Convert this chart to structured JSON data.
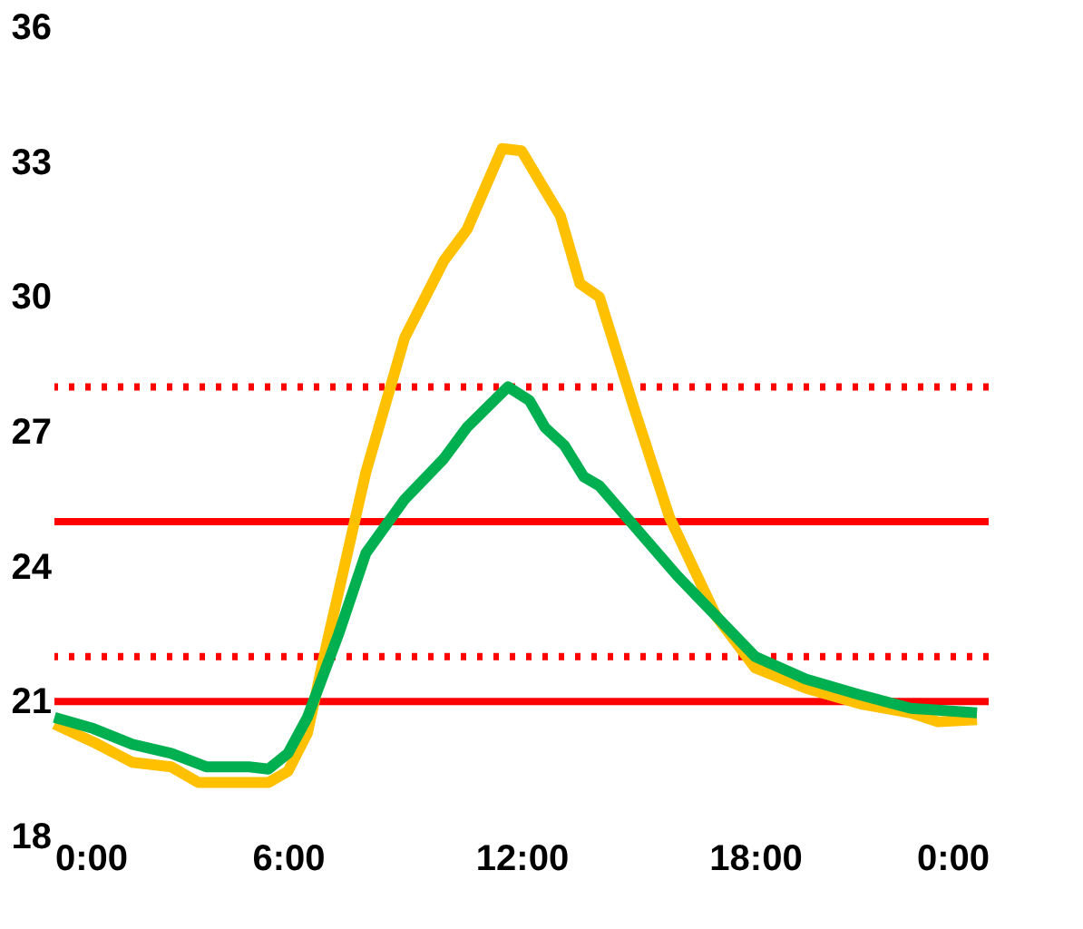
{
  "chart_data": {
    "type": "line",
    "xlim": [
      0,
      24
    ],
    "xticks": [
      {
        "value": 0,
        "label": "0:00"
      },
      {
        "value": 6,
        "label": "6:00"
      },
      {
        "value": 12,
        "label": "12:00"
      },
      {
        "value": 18,
        "label": "18:00"
      },
      {
        "value": 24,
        "label": "0:00"
      }
    ],
    "ylim": [
      18,
      36
    ],
    "yticks": [
      18,
      21,
      24,
      27,
      30,
      33,
      36
    ],
    "grid": false,
    "marker": "none",
    "line_style": "solid",
    "series": [
      {
        "color": "#ffc000",
        "x": [
          0,
          1,
          2,
          3,
          3.7,
          5.5,
          6,
          6.5,
          7,
          8,
          9,
          10,
          10.6,
          11.5,
          12,
          13,
          13.5,
          14,
          14.9,
          15.8,
          17,
          18,
          19.3,
          20.7,
          22,
          22.7,
          23.7
        ],
        "values": [
          20.5,
          20.1,
          19.65,
          19.55,
          19.2,
          19.2,
          19.45,
          20.3,
          22.3,
          26.1,
          29.1,
          30.8,
          31.5,
          33.3,
          33.25,
          31.8,
          30.3,
          30.0,
          27.5,
          25.1,
          22.9,
          21.75,
          21.3,
          20.95,
          20.75,
          20.55,
          20.6
        ]
      },
      {
        "color": "#00b050",
        "x": [
          0,
          1,
          2,
          3,
          3.9,
          5,
          5.5,
          6,
          6.5,
          7.3,
          8,
          9,
          10,
          10.6,
          11.3,
          11.65,
          12.2,
          12.6,
          13.1,
          13.6,
          14,
          14.9,
          16,
          17,
          18,
          19.3,
          20.7,
          22,
          23.7
        ],
        "values": [
          20.65,
          20.4,
          20.05,
          19.85,
          19.55,
          19.55,
          19.5,
          19.85,
          20.65,
          22.5,
          24.3,
          25.5,
          26.4,
          27.1,
          27.7,
          28.0,
          27.7,
          27.1,
          26.7,
          26.0,
          25.8,
          24.9,
          23.8,
          22.9,
          22.0,
          21.5,
          21.15,
          20.85,
          20.75
        ]
      }
    ],
    "ref_lines": [
      {
        "axis": "y",
        "value": 25,
        "color": "#ff0000",
        "line_style": "solid"
      },
      {
        "axis": "y",
        "value": 21,
        "color": "#ff0000",
        "line_style": "solid"
      },
      {
        "axis": "y",
        "value": 28,
        "color": "#ff0000",
        "line_style": "dotted"
      },
      {
        "axis": "y",
        "value": 22,
        "color": "#ff0000",
        "line_style": "dotted"
      }
    ]
  }
}
